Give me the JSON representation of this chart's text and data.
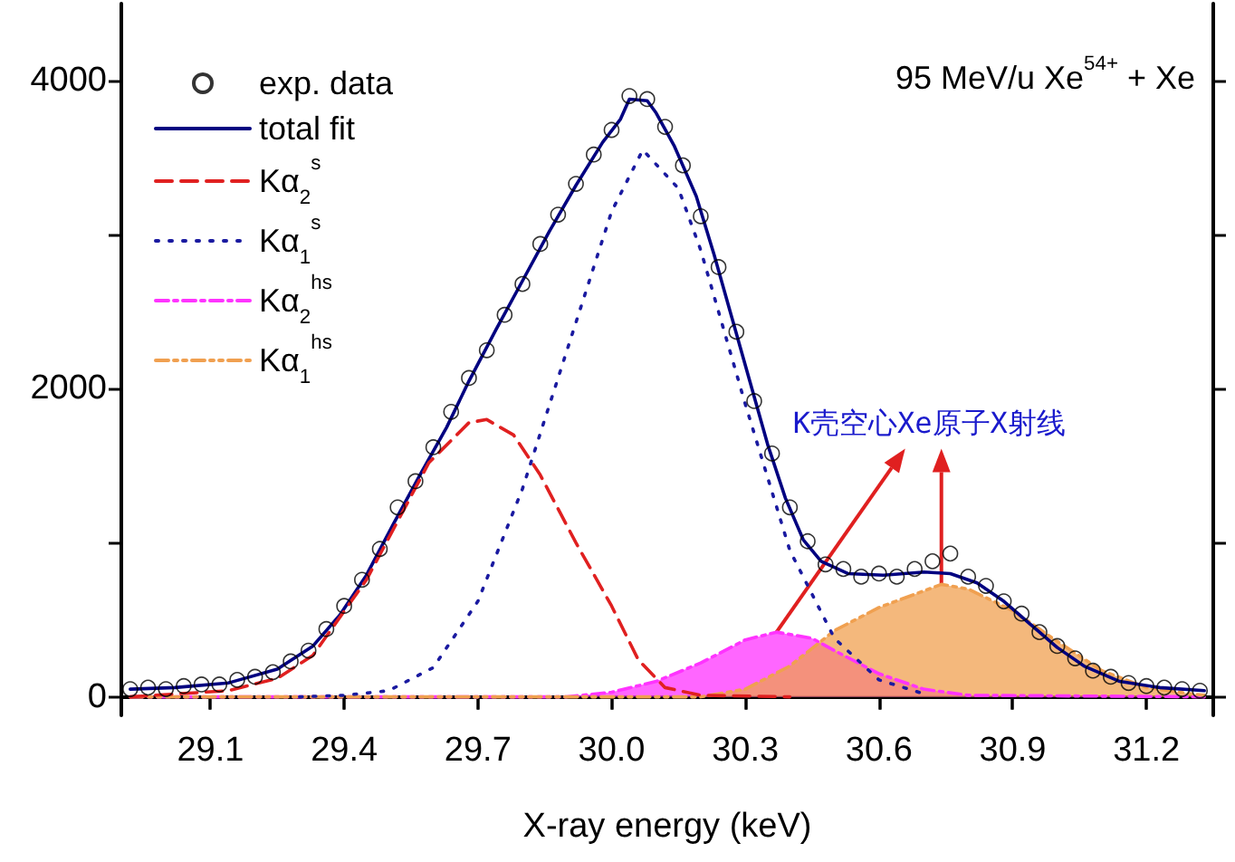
{
  "chart_data": {
    "type": "line",
    "xlabel": "X-ray energy (keV)",
    "xlim": [
      28.9,
      31.35
    ],
    "xticks": [
      29.1,
      29.4,
      29.7,
      "30.0",
      30.3,
      30.6,
      30.9,
      31.2
    ],
    "ylim": [
      -120,
      4500
    ],
    "yticks": [
      0,
      {
        "value": 1000,
        "label": null
      },
      2000,
      {
        "value": 3000,
        "label": null
      },
      4000
    ],
    "grid": false,
    "legend": "top left",
    "annotations": [
      "95 MeV/u Xe$^{54+}$ + Xe",
      {
        "text": "K壳空心Xe原子X射线",
        "x": 30.74,
        "y": 730
      }
    ],
    "series": [
      {
        "name": "exp. data",
        "type": "scatter",
        "marker": "circle",
        "color": "#000000",
        "x": [
          28.92,
          28.96,
          29.0,
          29.04,
          29.08,
          29.12,
          29.16,
          29.2,
          29.24,
          29.28,
          29.32,
          29.36,
          29.4,
          29.44,
          29.48,
          29.52,
          29.56,
          29.6,
          29.64,
          29.68,
          29.72,
          29.76,
          29.8,
          29.84,
          29.88,
          29.92,
          29.96,
          30.0,
          30.04,
          30.08,
          30.12,
          30.16,
          30.2,
          30.24,
          30.28,
          30.32,
          30.36,
          30.4,
          30.44,
          30.48,
          30.52,
          30.56,
          30.6,
          30.64,
          30.68,
          30.72,
          30.76,
          30.8,
          30.84,
          30.88,
          30.92,
          30.96,
          31.0,
          31.04,
          31.08,
          31.12,
          31.16,
          31.2,
          31.24,
          31.28,
          31.32
        ],
        "values": [
          50,
          60,
          50,
          70,
          80,
          80,
          110,
          130,
          160,
          230,
          300,
          440,
          590,
          760,
          960,
          1230,
          1400,
          1620,
          1850,
          2070,
          2250,
          2480,
          2680,
          2940,
          3130,
          3330,
          3520,
          3680,
          3900,
          3880,
          3700,
          3450,
          3120,
          2790,
          2370,
          1920,
          1580,
          1230,
          1010,
          860,
          830,
          780,
          800,
          780,
          830,
          880,
          930,
          780,
          720,
          620,
          540,
          420,
          330,
          250,
          170,
          130,
          90,
          70,
          60,
          50,
          40
        ]
      },
      {
        "name": "total fit",
        "marker": "none",
        "line_style": "solid",
        "color": "#000080",
        "x": [
          28.92,
          29.02,
          29.14,
          29.25,
          29.33,
          29.39,
          29.45,
          29.51,
          29.57,
          29.63,
          29.68,
          29.74,
          29.8,
          29.86,
          29.92,
          29.98,
          30.02,
          30.04,
          30.08,
          30.1,
          30.14,
          30.19,
          30.23,
          30.27,
          30.31,
          30.35,
          30.39,
          30.43,
          30.47,
          30.53,
          30.61,
          30.7,
          30.76,
          30.82,
          30.88,
          30.94,
          31.0,
          31.06,
          31.14,
          31.23,
          31.33
        ],
        "values": [
          50,
          60,
          90,
          180,
          330,
          530,
          790,
          1120,
          1440,
          1750,
          2050,
          2380,
          2700,
          3020,
          3320,
          3600,
          3750,
          3880,
          3870,
          3790,
          3580,
          3250,
          2870,
          2460,
          2050,
          1640,
          1290,
          1020,
          880,
          800,
          790,
          810,
          800,
          740,
          620,
          470,
          320,
          200,
          100,
          60,
          40
        ]
      },
      {
        "name": "Kα$_{2}$$^{s}$",
        "marker": "none",
        "line_style": "dashed",
        "color": "#e02020",
        "x": [
          28.92,
          29.14,
          29.25,
          29.33,
          29.45,
          29.59,
          29.68,
          29.72,
          29.78,
          29.84,
          29.92,
          30.0,
          30.06,
          30.12,
          30.2,
          30.4
        ],
        "values": [
          0,
          40,
          120,
          270,
          760,
          1520,
          1780,
          1800,
          1700,
          1440,
          1000,
          590,
          240,
          60,
          10,
          0
        ]
      },
      {
        "name": "Kα$_{1}$$^{s}$",
        "marker": "none",
        "line_style": "dotted",
        "color": "#1a1aa0",
        "x": [
          29.3,
          29.4,
          29.5,
          29.6,
          29.7,
          29.8,
          29.9,
          30.0,
          30.07,
          30.15,
          30.2,
          30.3,
          30.4,
          30.5,
          30.6,
          30.7
        ],
        "values": [
          0,
          10,
          40,
          190,
          620,
          1350,
          2250,
          3150,
          3550,
          3300,
          2900,
          1900,
          950,
          380,
          110,
          20
        ]
      },
      {
        "name": "Kα$_{2}$$^{hs}$",
        "type": "area",
        "marker": "none",
        "line_style": "dashed",
        "color": "#ff33ff",
        "x": [
          28.92,
          29.9,
          30.0,
          30.1,
          30.2,
          30.3,
          30.37,
          30.45,
          30.5,
          30.6,
          30.7,
          30.8,
          31.33
        ],
        "values": [
          0,
          0,
          30,
          100,
          220,
          370,
          420,
          380,
          300,
          150,
          50,
          10,
          0
        ]
      },
      {
        "name": "Kα$_{1}$$^{hs}$",
        "type": "area",
        "marker": "none",
        "line_style": "dashed",
        "color": "#f0a050",
        "x": [
          28.92,
          30.2,
          30.3,
          30.4,
          30.5,
          30.6,
          30.74,
          30.8,
          30.9,
          31.0,
          31.1,
          31.2,
          31.3,
          31.33
        ],
        "values": [
          0,
          0,
          50,
          200,
          430,
          580,
          730,
          700,
          560,
          360,
          170,
          60,
          20,
          10
        ]
      }
    ]
  }
}
